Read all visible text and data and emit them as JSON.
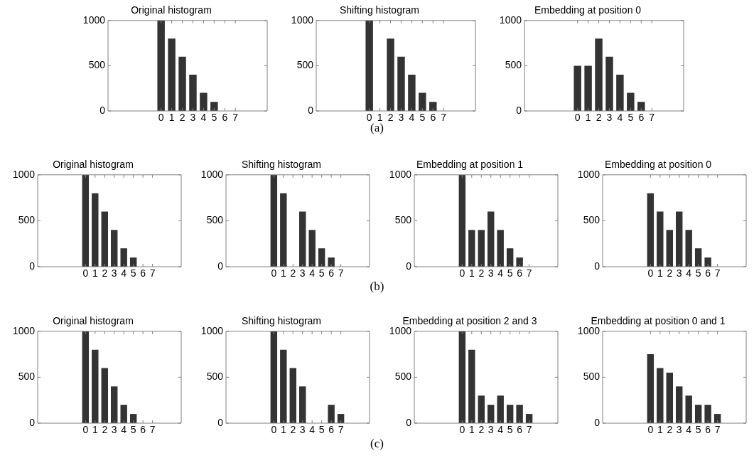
{
  "chart_data": [
    {
      "type": "bar",
      "title": "Original histogram",
      "x": [
        0,
        1,
        2,
        3,
        4,
        5,
        6,
        7
      ],
      "values": [
        1000,
        800,
        600,
        400,
        200,
        100,
        0,
        0
      ],
      "color": "#333333",
      "xlim": [
        -5,
        10
      ],
      "xticks": [
        0,
        1,
        2,
        3,
        4,
        5,
        6,
        7
      ],
      "ylim": [
        0,
        1000
      ],
      "yticks": [
        0,
        500,
        1000
      ],
      "grid": false,
      "legend": false,
      "annotations": [
        "(a)"
      ]
    },
    {
      "type": "bar",
      "title": "Shifting histogram",
      "x": [
        0,
        1,
        2,
        3,
        4,
        5,
        6,
        7
      ],
      "values": [
        1000,
        0,
        800,
        600,
        400,
        200,
        100,
        0
      ],
      "color": "#333333",
      "xlim": [
        -5,
        10
      ],
      "xticks": [
        0,
        1,
        2,
        3,
        4,
        5,
        6,
        7
      ],
      "ylim": [
        0,
        1000
      ],
      "yticks": [
        0,
        500,
        1000
      ],
      "grid": false,
      "legend": false
    },
    {
      "type": "bar",
      "title": "Embedding at position 0",
      "x": [
        0,
        1,
        2,
        3,
        4,
        5,
        6,
        7
      ],
      "values": [
        500,
        500,
        800,
        600,
        400,
        200,
        100,
        0
      ],
      "color": "#333333",
      "xlim": [
        -5,
        10
      ],
      "xticks": [
        0,
        1,
        2,
        3,
        4,
        5,
        6,
        7
      ],
      "ylim": [
        0,
        1000
      ],
      "yticks": [
        0,
        500,
        1000
      ],
      "grid": false,
      "legend": false
    },
    {
      "type": "bar",
      "title": "Original histogram",
      "x": [
        0,
        1,
        2,
        3,
        4,
        5,
        6,
        7
      ],
      "values": [
        1000,
        800,
        600,
        400,
        200,
        100,
        0,
        0
      ],
      "color": "#333333",
      "xlim": [
        -5,
        10
      ],
      "xticks": [
        0,
        1,
        2,
        3,
        4,
        5,
        6,
        7
      ],
      "ylim": [
        0,
        1000
      ],
      "yticks": [
        0,
        500,
        1000
      ],
      "grid": false,
      "legend": false,
      "annotations": [
        "(b)"
      ]
    },
    {
      "type": "bar",
      "title": "Shifting histogram",
      "x": [
        0,
        1,
        2,
        3,
        4,
        5,
        6,
        7
      ],
      "values": [
        1000,
        800,
        0,
        600,
        400,
        200,
        100,
        0
      ],
      "color": "#333333",
      "xlim": [
        -5,
        10
      ],
      "xticks": [
        0,
        1,
        2,
        3,
        4,
        5,
        6,
        7
      ],
      "ylim": [
        0,
        1000
      ],
      "yticks": [
        0,
        500,
        1000
      ],
      "grid": false,
      "legend": false
    },
    {
      "type": "bar",
      "title": "Embedding at position 1",
      "x": [
        0,
        1,
        2,
        3,
        4,
        5,
        6,
        7
      ],
      "values": [
        1000,
        400,
        400,
        600,
        400,
        200,
        100,
        0
      ],
      "color": "#333333",
      "xlim": [
        -5,
        10
      ],
      "xticks": [
        0,
        1,
        2,
        3,
        4,
        5,
        6,
        7
      ],
      "ylim": [
        0,
        1000
      ],
      "yticks": [
        0,
        500,
        1000
      ],
      "grid": false,
      "legend": false
    },
    {
      "type": "bar",
      "title": "Embedding at position 0",
      "x": [
        0,
        1,
        2,
        3,
        4,
        5,
        6,
        7
      ],
      "values": [
        800,
        600,
        400,
        600,
        400,
        200,
        100,
        0
      ],
      "color": "#333333",
      "xlim": [
        -5,
        10
      ],
      "xticks": [
        0,
        1,
        2,
        3,
        4,
        5,
        6,
        7
      ],
      "ylim": [
        0,
        1000
      ],
      "yticks": [
        0,
        500,
        1000
      ],
      "grid": false,
      "legend": false
    },
    {
      "type": "bar",
      "title": "Original histogram",
      "x": [
        0,
        1,
        2,
        3,
        4,
        5,
        6,
        7
      ],
      "values": [
        1000,
        800,
        600,
        400,
        200,
        100,
        0,
        0
      ],
      "color": "#333333",
      "xlim": [
        -5,
        10
      ],
      "xticks": [
        0,
        1,
        2,
        3,
        4,
        5,
        6,
        7
      ],
      "ylim": [
        0,
        1000
      ],
      "yticks": [
        0,
        500,
        1000
      ],
      "grid": false,
      "legend": false,
      "annotations": [
        "(c)"
      ]
    },
    {
      "type": "bar",
      "title": "Shifting histogram",
      "x": [
        0,
        1,
        2,
        3,
        4,
        5,
        6,
        7
      ],
      "values": [
        1000,
        800,
        600,
        400,
        0,
        0,
        200,
        100
      ],
      "color": "#333333",
      "xlim": [
        -5,
        10
      ],
      "xticks": [
        0,
        1,
        2,
        3,
        4,
        5,
        6,
        7
      ],
      "ylim": [
        0,
        1000
      ],
      "yticks": [
        0,
        500,
        1000
      ],
      "grid": false,
      "legend": false
    },
    {
      "type": "bar",
      "title": "Embedding at position 2 and 3",
      "x": [
        0,
        1,
        2,
        3,
        4,
        5,
        6,
        7
      ],
      "values": [
        1000,
        800,
        300,
        200,
        300,
        200,
        200,
        100
      ],
      "color": "#333333",
      "xlim": [
        -5,
        10
      ],
      "xticks": [
        0,
        1,
        2,
        3,
        4,
        5,
        6,
        7
      ],
      "ylim": [
        0,
        1000
      ],
      "yticks": [
        0,
        500,
        1000
      ],
      "grid": false,
      "legend": false
    },
    {
      "type": "bar",
      "title": "Embedding at position 0 and 1",
      "x": [
        0,
        1,
        2,
        3,
        4,
        5,
        6,
        7
      ],
      "values": [
        750,
        600,
        550,
        400,
        300,
        200,
        200,
        100
      ],
      "color": "#333333",
      "xlim": [
        -5,
        10
      ],
      "xticks": [
        0,
        1,
        2,
        3,
        4,
        5,
        6,
        7
      ],
      "ylim": [
        0,
        1000
      ],
      "yticks": [
        0,
        500,
        1000
      ],
      "grid": false,
      "legend": false
    }
  ]
}
